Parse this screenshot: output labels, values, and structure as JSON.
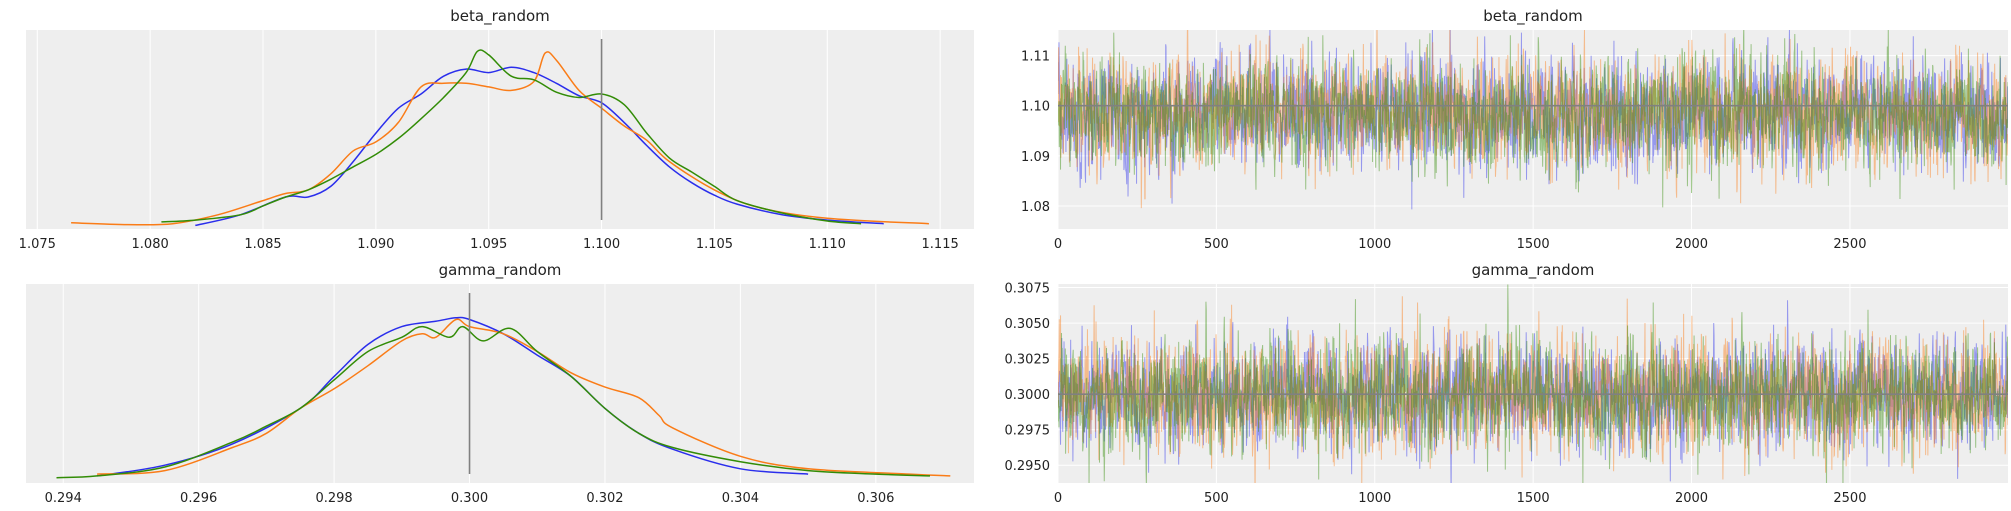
{
  "figure": {
    "background": "#ffffff",
    "panel_background": "#eeeeee",
    "grid_color": "#ffffff",
    "reference_line_color": "#808080"
  },
  "chart_data": [
    {
      "type": "line",
      "title": "beta_random",
      "subtype": "kde",
      "xlim": [
        1.0745,
        1.1165
      ],
      "ylim": [
        -0.02,
        1.1
      ],
      "x_ticks": [
        1.075,
        1.08,
        1.085,
        1.09,
        1.095,
        1.1,
        1.105,
        1.11,
        1.115
      ],
      "x_tick_labels": [
        "1.075",
        "1.080",
        "1.085",
        "1.090",
        "1.095",
        "1.100",
        "1.105",
        "1.110",
        "1.115"
      ],
      "y_ticks_shown": false,
      "reference_value": 1.1,
      "series": [
        {
          "color": "#2a2eec",
          "x": [
            1.082,
            1.084,
            1.086,
            1.087,
            1.088,
            1.089,
            1.09,
            1.091,
            1.092,
            1.093,
            1.094,
            1.095,
            1.096,
            1.097,
            1.098,
            1.099,
            1.1,
            1.101,
            1.102,
            1.103,
            1.104,
            1.105,
            1.106,
            1.108,
            1.11,
            1.1125
          ],
          "y": [
            0.0,
            0.06,
            0.16,
            0.16,
            0.22,
            0.36,
            0.52,
            0.66,
            0.74,
            0.84,
            0.88,
            0.86,
            0.89,
            0.86,
            0.8,
            0.73,
            0.69,
            0.58,
            0.45,
            0.33,
            0.24,
            0.17,
            0.12,
            0.06,
            0.03,
            0.01
          ]
        },
        {
          "color": "#fa7c17",
          "x": [
            1.0765,
            1.079,
            1.081,
            1.083,
            1.085,
            1.086,
            1.087,
            1.088,
            1.089,
            1.09,
            1.091,
            1.092,
            1.093,
            1.094,
            1.095,
            1.096,
            1.097,
            1.0975,
            1.098,
            1.099,
            1.1,
            1.101,
            1.102,
            1.103,
            1.105,
            1.107,
            1.11,
            1.1145
          ],
          "y": [
            0.015,
            0.005,
            0.01,
            0.06,
            0.14,
            0.18,
            0.2,
            0.29,
            0.42,
            0.47,
            0.58,
            0.78,
            0.8,
            0.8,
            0.78,
            0.76,
            0.81,
            0.97,
            0.93,
            0.76,
            0.66,
            0.56,
            0.48,
            0.36,
            0.2,
            0.1,
            0.04,
            0.01
          ]
        },
        {
          "color": "#328c06",
          "x": [
            1.0805,
            1.082,
            1.084,
            1.085,
            1.086,
            1.087,
            1.088,
            1.089,
            1.09,
            1.091,
            1.092,
            1.093,
            1.094,
            1.0945,
            1.095,
            1.096,
            1.097,
            1.098,
            1.099,
            1.1,
            1.101,
            1.102,
            1.103,
            1.104,
            1.105,
            1.106,
            1.108,
            1.11,
            1.1115
          ],
          "y": [
            0.02,
            0.03,
            0.06,
            0.11,
            0.16,
            0.2,
            0.26,
            0.33,
            0.4,
            0.49,
            0.6,
            0.72,
            0.86,
            0.98,
            0.96,
            0.84,
            0.82,
            0.75,
            0.72,
            0.74,
            0.68,
            0.52,
            0.38,
            0.3,
            0.22,
            0.14,
            0.07,
            0.025,
            0.01
          ]
        }
      ]
    },
    {
      "type": "line",
      "title": "beta_random",
      "subtype": "trace",
      "xlim": [
        0,
        2999
      ],
      "ylim": [
        1.0754,
        1.1151
      ],
      "x_ticks": [
        0,
        500,
        1000,
        1500,
        2000,
        2500
      ],
      "x_tick_labels": [
        "0",
        "500",
        "1000",
        "1500",
        "2000",
        "2500"
      ],
      "y_ticks": [
        1.08,
        1.09,
        1.1,
        1.11
      ],
      "y_tick_labels": [
        "1.08",
        "1.09",
        "1.10",
        "1.11"
      ],
      "reference_value": 1.1,
      "chains": [
        {
          "color": "#2a2eec",
          "center": 1.0985,
          "sd": 0.0054,
          "n_draws": 3000
        },
        {
          "color": "#fa7c17",
          "center": 1.0985,
          "sd": 0.0055,
          "n_draws": 3000
        },
        {
          "color": "#328c06",
          "center": 1.0985,
          "sd": 0.0053,
          "n_draws": 3000
        }
      ]
    },
    {
      "type": "line",
      "title": "gamma_random",
      "subtype": "kde",
      "xlim": [
        0.29345,
        0.30745
      ],
      "ylim": [
        -0.02,
        1.1
      ],
      "x_ticks": [
        0.294,
        0.296,
        0.298,
        0.3,
        0.302,
        0.304,
        0.306
      ],
      "x_tick_labels": [
        "0.294",
        "0.296",
        "0.298",
        "0.300",
        "0.302",
        "0.304",
        "0.306"
      ],
      "y_ticks_shown": false,
      "reference_value": 0.3,
      "series": [
        {
          "color": "#2a2eec",
          "x": [
            0.2945,
            0.2955,
            0.2965,
            0.2975,
            0.298,
            0.2985,
            0.299,
            0.2995,
            0.2998,
            0.3,
            0.3005,
            0.301,
            0.3015,
            0.302,
            0.3025,
            0.303,
            0.304,
            0.305
          ],
          "y": [
            0.02,
            0.08,
            0.2,
            0.4,
            0.58,
            0.76,
            0.86,
            0.89,
            0.91,
            0.9,
            0.82,
            0.7,
            0.58,
            0.4,
            0.26,
            0.17,
            0.06,
            0.03
          ]
        },
        {
          "color": "#fa7c17",
          "x": [
            0.2945,
            0.2955,
            0.2965,
            0.297,
            0.2975,
            0.298,
            0.2985,
            0.299,
            0.2993,
            0.2995,
            0.2998,
            0.3,
            0.3005,
            0.301,
            0.3015,
            0.302,
            0.3025,
            0.3028,
            0.303,
            0.304,
            0.305,
            0.3065,
            0.3071
          ],
          "y": [
            0.03,
            0.05,
            0.18,
            0.26,
            0.4,
            0.51,
            0.64,
            0.78,
            0.82,
            0.8,
            0.9,
            0.86,
            0.82,
            0.72,
            0.6,
            0.52,
            0.46,
            0.36,
            0.29,
            0.13,
            0.06,
            0.03,
            0.02
          ]
        },
        {
          "color": "#328c06",
          "x": [
            0.2939,
            0.2945,
            0.2955,
            0.2965,
            0.297,
            0.2975,
            0.298,
            0.2985,
            0.299,
            0.2993,
            0.2997,
            0.2999,
            0.3002,
            0.3006,
            0.301,
            0.3015,
            0.302,
            0.3025,
            0.303,
            0.304,
            0.305,
            0.306,
            0.3068
          ],
          "y": [
            0.01,
            0.02,
            0.07,
            0.21,
            0.3,
            0.4,
            0.56,
            0.72,
            0.8,
            0.86,
            0.8,
            0.86,
            0.78,
            0.85,
            0.72,
            0.58,
            0.4,
            0.26,
            0.18,
            0.1,
            0.05,
            0.03,
            0.02
          ]
        }
      ]
    },
    {
      "type": "line",
      "title": "gamma_random",
      "subtype": "trace",
      "xlim": [
        0,
        2999
      ],
      "ylim": [
        0.29375,
        0.30775
      ],
      "x_ticks": [
        0,
        500,
        1000,
        1500,
        2000,
        2500
      ],
      "x_tick_labels": [
        "0",
        "500",
        "1000",
        "1500",
        "2000",
        "2500"
      ],
      "y_ticks": [
        0.295,
        0.2975,
        0.3,
        0.3025,
        0.305,
        0.3075
      ],
      "y_tick_labels": [
        "0.2950",
        "0.2975",
        "0.3000",
        "0.3025",
        "0.3050",
        "0.3075"
      ],
      "reference_value": 0.3,
      "chains": [
        {
          "color": "#2a2eec",
          "center": 0.29995,
          "sd": 0.0019,
          "n_draws": 3000
        },
        {
          "color": "#fa7c17",
          "center": 0.29995,
          "sd": 0.002,
          "n_draws": 3000
        },
        {
          "color": "#328c06",
          "center": 0.29995,
          "sd": 0.0019,
          "n_draws": 3000
        }
      ]
    }
  ]
}
